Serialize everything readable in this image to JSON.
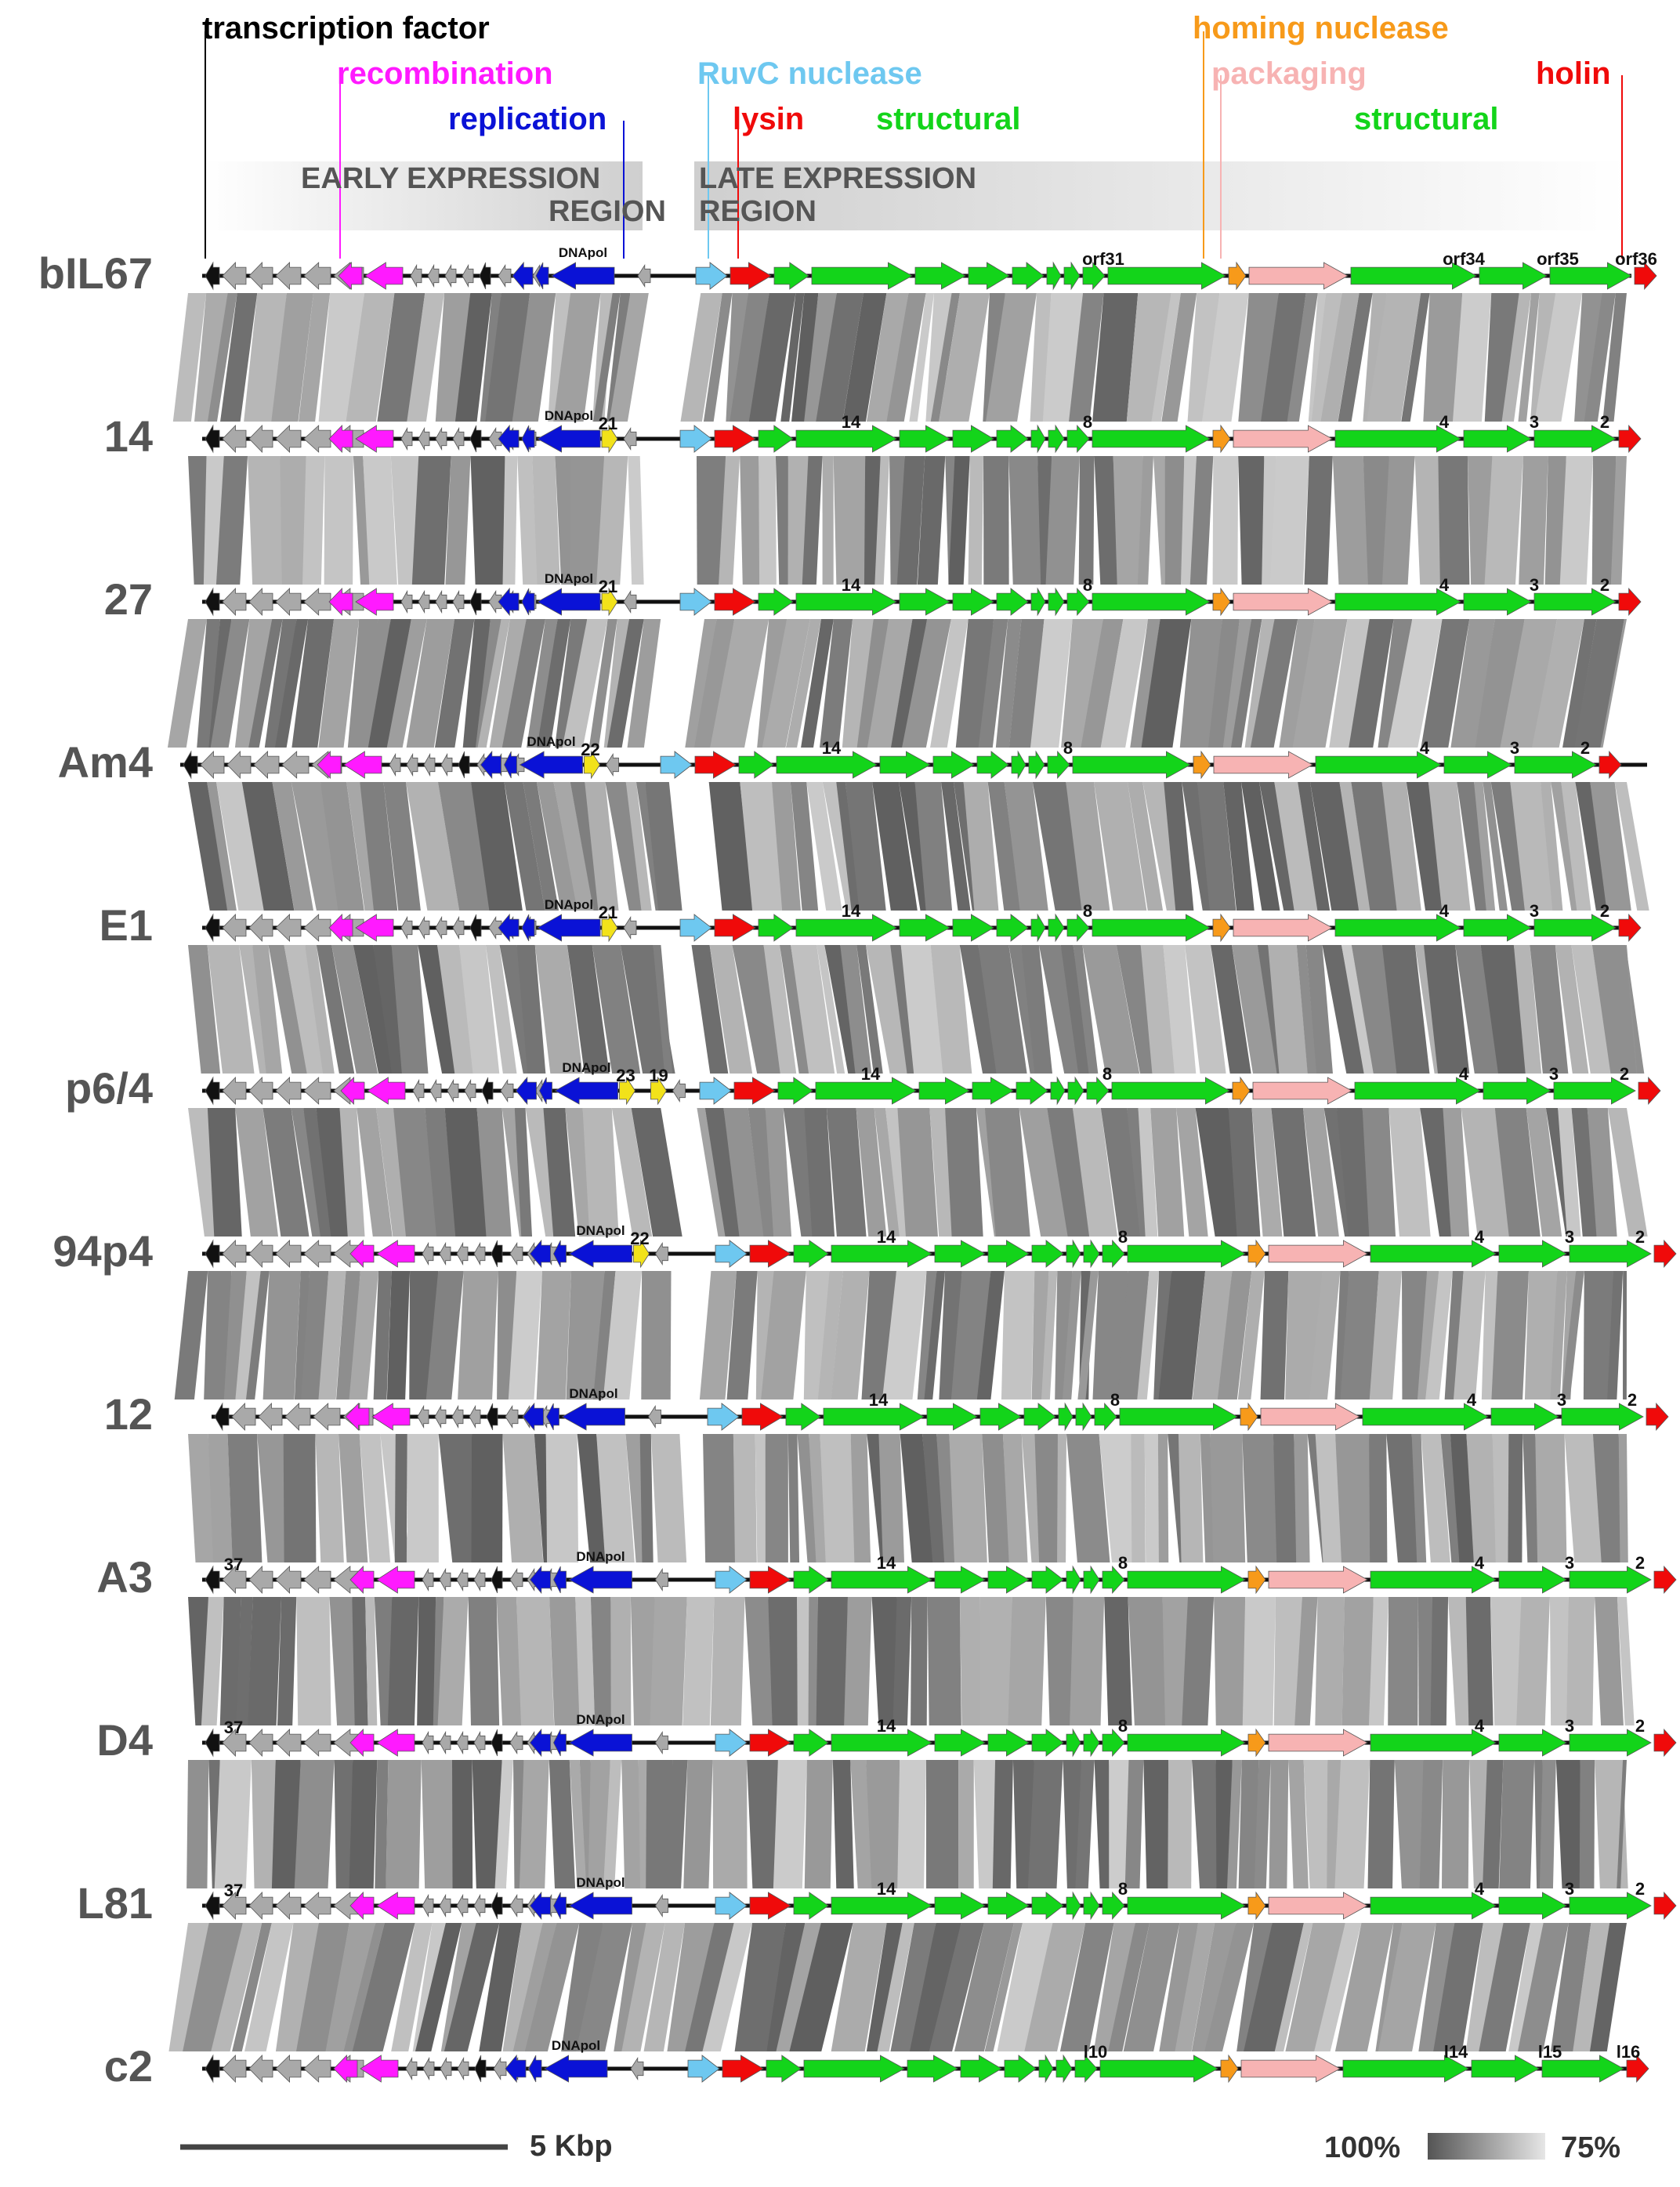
{
  "figure": "Genome map comparison of Lactococcus phages",
  "categories": [
    {
      "key": "transcription_factor",
      "label": "transcription factor",
      "color": "#000000"
    },
    {
      "key": "recombination",
      "label": "recombination",
      "color": "#ff1aff"
    },
    {
      "key": "replication",
      "label": "replication",
      "color": "#0a12d6"
    },
    {
      "key": "ruvc",
      "label": "RuvC nuclease",
      "color": "#6ec8f0"
    },
    {
      "key": "lysin",
      "label": "lysin",
      "color": "#f00a0a"
    },
    {
      "key": "structural_a",
      "label": "structural",
      "color": "#13d41a"
    },
    {
      "key": "homing",
      "label": "homing nuclease",
      "color": "#f79a1a"
    },
    {
      "key": "packaging",
      "label": "packaging",
      "color": "#f7b3b3"
    },
    {
      "key": "structural_b",
      "label": "structural",
      "color": "#13d41a"
    },
    {
      "key": "holin",
      "label": "holin",
      "color": "#f00a0a"
    }
  ],
  "regions": {
    "early": {
      "line1": "EARLY EXPRESSION",
      "line2": "REGION"
    },
    "late": {
      "line1": "LATE EXPRESSION",
      "line2": "REGION"
    }
  },
  "genomes": [
    {
      "name": "bIL67",
      "dnapol": "DNApol",
      "extra": "",
      "marks": [
        "orf31",
        "orf34",
        "orf35",
        "orf36"
      ]
    },
    {
      "name": "14",
      "dnapol": "DNApol",
      "extra": "21",
      "marks": [
        "14",
        "8",
        "4",
        "3",
        "2"
      ]
    },
    {
      "name": "27",
      "dnapol": "DNApol",
      "extra": "21",
      "marks": [
        "14",
        "8",
        "4",
        "3",
        "2"
      ]
    },
    {
      "name": "Am4",
      "dnapol": "DNApol",
      "extra": "22",
      "marks": [
        "14",
        "8",
        "4",
        "3",
        "2"
      ]
    },
    {
      "name": "E1",
      "dnapol": "DNApol",
      "extra": "21",
      "marks": [
        "14",
        "8",
        "4",
        "3",
        "2"
      ]
    },
    {
      "name": "p6/4",
      "dnapol": "DNApol",
      "extra": "23",
      "extra2": "19",
      "marks": [
        "14",
        "8",
        "4",
        "3",
        "2"
      ]
    },
    {
      "name": "94p4",
      "dnapol": "DNApol",
      "extra": "22",
      "marks": [
        "14",
        "8",
        "4",
        "3",
        "2"
      ]
    },
    {
      "name": "12",
      "dnapol": "DNApol",
      "extra": "",
      "marks": [
        "14",
        "8",
        "4",
        "3",
        "2"
      ]
    },
    {
      "name": "A3",
      "dnapol": "DNApol",
      "extra": "37",
      "marks": [
        "14",
        "8",
        "4",
        "3",
        "2"
      ]
    },
    {
      "name": "D4",
      "dnapol": "DNApol",
      "extra": "37",
      "marks": [
        "14",
        "8",
        "4",
        "3",
        "2"
      ]
    },
    {
      "name": "L81",
      "dnapol": "DNApol",
      "extra": "37",
      "marks": [
        "14",
        "8",
        "4",
        "3",
        "2"
      ]
    },
    {
      "name": "c2",
      "dnapol": "DNApol",
      "extra": "",
      "marks": [
        "l10",
        "l14",
        "l15",
        "l16"
      ]
    }
  ],
  "scale_bar": {
    "label": "5 Kbp"
  },
  "identity_legend": {
    "high": "100%",
    "low": "75%",
    "high_color": "#555555",
    "low_color": "#e6e6e6"
  }
}
